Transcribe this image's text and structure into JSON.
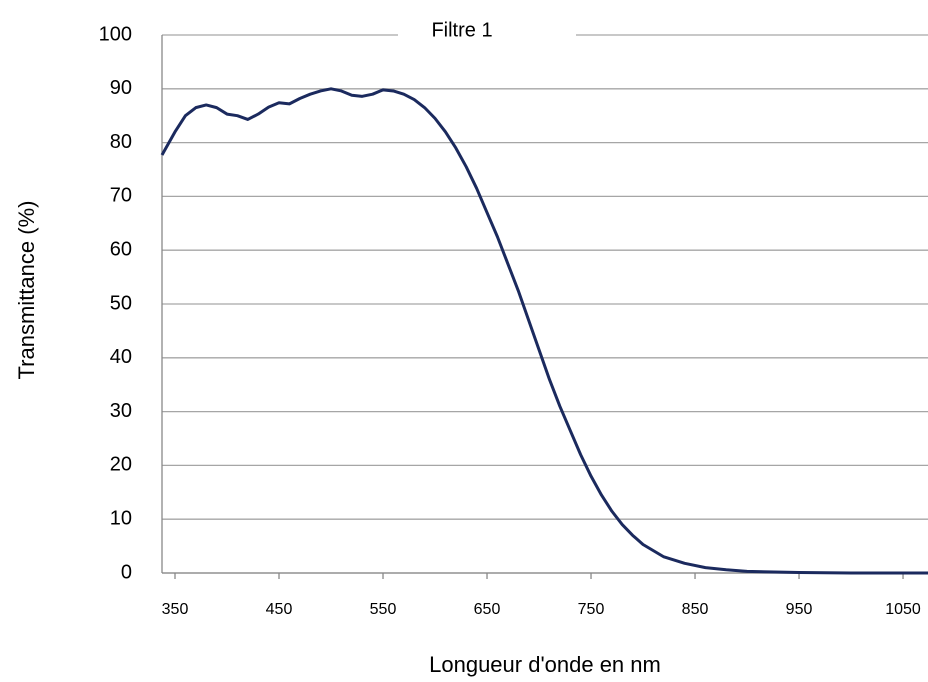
{
  "chart_data": {
    "type": "line",
    "title": "Filtre 1",
    "x_label": "Longueur d'onde en nm",
    "y_label": "Transmittance (%)",
    "x": [
      337.5,
      350,
      360,
      370,
      380,
      390,
      400,
      410,
      420,
      430,
      440,
      450,
      460,
      470,
      480,
      490,
      500,
      510,
      520,
      530,
      540,
      550,
      560,
      570,
      580,
      590,
      600,
      610,
      620,
      630,
      640,
      650,
      660,
      670,
      680,
      690,
      700,
      710,
      720,
      730,
      740,
      750,
      760,
      770,
      780,
      790,
      800,
      820,
      840,
      860,
      880,
      900,
      950,
      1000,
      1074
    ],
    "series": [
      {
        "name": "Filtre 1",
        "color": "#1b2a5e",
        "values": [
          77.7,
          82,
          85,
          86.5,
          87,
          86.5,
          85.3,
          85,
          84.3,
          85.3,
          86.6,
          87.4,
          87.2,
          88.2,
          89,
          89.6,
          90,
          89.6,
          88.8,
          88.6,
          89,
          89.8,
          89.6,
          89,
          88,
          86.5,
          84.5,
          82,
          79,
          75.5,
          71.5,
          67,
          62.5,
          57.5,
          52.5,
          47,
          41.5,
          36,
          31,
          26.5,
          22,
          18,
          14.5,
          11.5,
          9,
          7,
          5.3,
          3,
          1.8,
          1,
          0.6,
          0.3,
          0.1,
          0,
          0
        ]
      }
    ],
    "xlim": [
      337.5,
      1074
    ],
    "ylim": [
      0,
      100
    ],
    "xticks": [
      350,
      450,
      550,
      650,
      750,
      850,
      950,
      1050
    ],
    "yticks": [
      0,
      10,
      20,
      30,
      40,
      50,
      60,
      70,
      80,
      90,
      100
    ],
    "grid": true
  }
}
